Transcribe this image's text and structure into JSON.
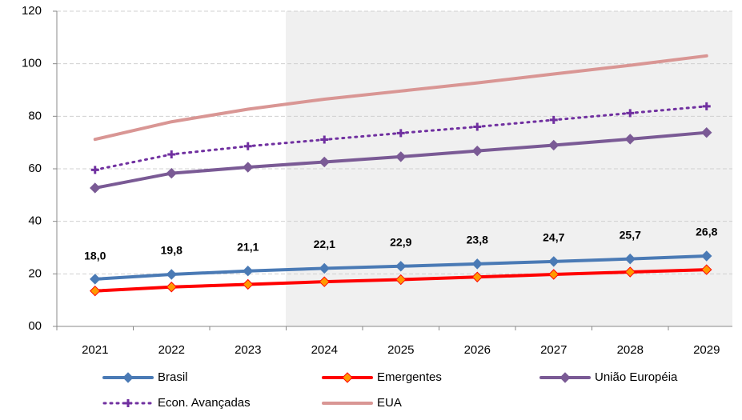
{
  "chart_data": {
    "type": "line",
    "categories": [
      "2021",
      "2022",
      "2023",
      "2024",
      "2025",
      "2026",
      "2027",
      "2028",
      "2029"
    ],
    "series": [
      {
        "name": "Brasil",
        "color": "#4a7ab5",
        "marker": "diamond",
        "marker_color": "#4a7ab5",
        "values": [
          18.0,
          19.8,
          21.1,
          22.1,
          22.9,
          23.8,
          24.7,
          25.7,
          26.8
        ],
        "value_labels": [
          "18,0",
          "19,8",
          "21,1",
          "22,1",
          "22,9",
          "23,8",
          "24,7",
          "25,7",
          "26,8"
        ]
      },
      {
        "name": "Emergentes",
        "color": "#ff0000",
        "marker": "diamond",
        "marker_color": "#ff9900",
        "values": [
          13.5,
          15.0,
          16.0,
          17.0,
          17.8,
          18.8,
          19.8,
          20.7,
          21.6
        ]
      },
      {
        "name": "União Européia",
        "color": "#7a5a95",
        "marker": "diamond",
        "marker_color": "#7a5a95",
        "values": [
          52.7,
          58.3,
          60.6,
          62.6,
          64.6,
          66.8,
          69.0,
          71.3,
          73.8
        ]
      },
      {
        "name": "Econ. Avançadas",
        "color": "#7030a0",
        "marker": "plus",
        "marker_color": "#7030a0",
        "dashed": true,
        "values": [
          59.6,
          65.5,
          68.6,
          71.1,
          73.6,
          76.0,
          78.6,
          81.2,
          83.8
        ]
      },
      {
        "name": "EUA",
        "color": "#d99694",
        "values": [
          71.2,
          77.9,
          82.7,
          86.5,
          89.6,
          92.7,
          96.1,
          99.4,
          103.0
        ]
      }
    ],
    "ylim": [
      0,
      120
    ],
    "yticks": [
      {
        "value": 0,
        "label": "00"
      },
      20,
      40,
      60,
      80,
      100,
      120
    ],
    "grid": true
  }
}
